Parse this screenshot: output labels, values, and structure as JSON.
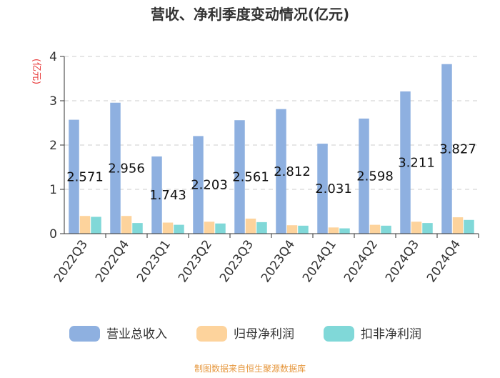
{
  "chart_data": {
    "type": "bar",
    "title": "营收、净利季度变动情况(亿元)",
    "ylabel": "(亿元)",
    "xlabel": "",
    "ylim": [
      0,
      4
    ],
    "yticks": [
      0,
      1,
      2,
      3,
      4
    ],
    "grid": true,
    "legend_position": "bottom",
    "categories": [
      "2022Q3",
      "2022Q4",
      "2023Q1",
      "2023Q2",
      "2023Q3",
      "2023Q4",
      "2024Q1",
      "2024Q2",
      "2024Q3",
      "2024Q4"
    ],
    "series": [
      {
        "name": "营业总收入",
        "color": "#8eb0e0",
        "values": [
          2.571,
          2.956,
          1.743,
          2.203,
          2.561,
          2.812,
          2.031,
          2.598,
          3.211,
          3.827
        ],
        "labels": [
          "2.571",
          "2.956",
          "1.743",
          "2.203",
          "2.561",
          "2.812",
          "2.031",
          "2.598",
          "3.211",
          "3.827"
        ]
      },
      {
        "name": "归母净利润",
        "color": "#fdd39c",
        "values": [
          0.4,
          0.4,
          0.25,
          0.27,
          0.34,
          0.19,
          0.14,
          0.2,
          0.27,
          0.37
        ]
      },
      {
        "name": "扣非净利润",
        "color": "#80d8d8",
        "values": [
          0.38,
          0.24,
          0.2,
          0.23,
          0.26,
          0.18,
          0.12,
          0.18,
          0.24,
          0.31
        ]
      }
    ],
    "source": "制图数据来自恒生聚源数据库"
  }
}
